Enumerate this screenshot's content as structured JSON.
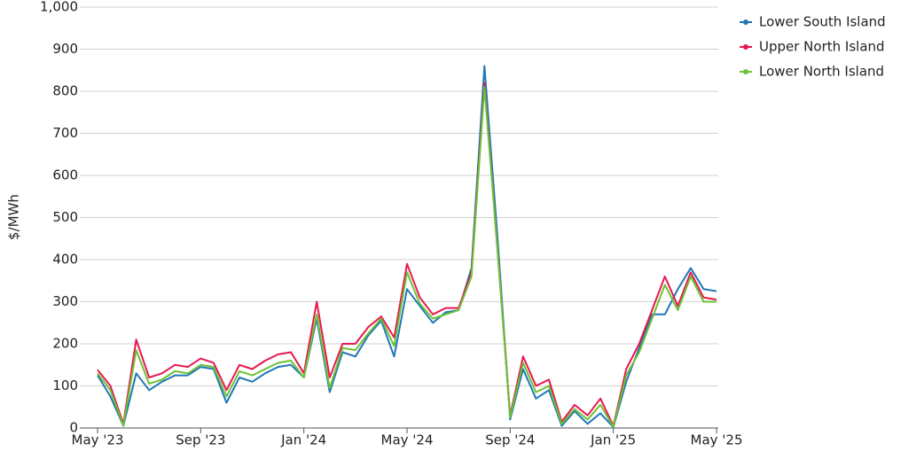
{
  "chart_data": {
    "type": "line",
    "y_label": "$/MWh",
    "categories": [
      "May '23",
      null,
      null,
      null,
      null,
      null,
      null,
      null,
      "Sep '23",
      null,
      null,
      null,
      null,
      null,
      null,
      null,
      "Jan '24",
      null,
      null,
      null,
      null,
      null,
      null,
      null,
      "May '24",
      null,
      null,
      null,
      null,
      null,
      null,
      null,
      "Sep '24",
      null,
      null,
      null,
      null,
      null,
      null,
      null,
      "Jan '25",
      null,
      null,
      null,
      null,
      null,
      null,
      null,
      "May '25"
    ],
    "series": [
      {
        "name": "Lower South Island",
        "color": "#1f78b4",
        "values": [
          125,
          75,
          5,
          130,
          90,
          110,
          125,
          125,
          145,
          140,
          60,
          120,
          110,
          130,
          145,
          150,
          120,
          260,
          85,
          180,
          170,
          220,
          255,
          170,
          330,
          290,
          250,
          275,
          280,
          380,
          860,
          460,
          20,
          140,
          70,
          90,
          5,
          40,
          10,
          35,
          2,
          110,
          190,
          270,
          270,
          330,
          380,
          330,
          325
        ]
      },
      {
        "name": "Upper North Island",
        "color": "#e8174f",
        "values": [
          138,
          100,
          10,
          210,
          120,
          130,
          150,
          145,
          165,
          155,
          90,
          150,
          140,
          160,
          175,
          180,
          130,
          300,
          120,
          200,
          200,
          240,
          265,
          215,
          390,
          310,
          270,
          285,
          285,
          370,
          820,
          430,
          30,
          170,
          100,
          115,
          15,
          55,
          30,
          70,
          5,
          140,
          200,
          280,
          360,
          290,
          370,
          310,
          305
        ]
      },
      {
        "name": "Lower North Island",
        "color": "#6cc235",
        "values": [
          130,
          90,
          5,
          185,
          105,
          115,
          135,
          130,
          150,
          145,
          75,
          135,
          125,
          140,
          155,
          160,
          120,
          270,
          95,
          190,
          185,
          225,
          260,
          195,
          370,
          295,
          260,
          270,
          280,
          360,
          810,
          430,
          25,
          155,
          85,
          100,
          10,
          45,
          20,
          55,
          3,
          125,
          180,
          260,
          340,
          280,
          360,
          300,
          300
        ]
      }
    ],
    "ylim": [
      0,
      1000
    ],
    "yticks": [
      0,
      100,
      200,
      300,
      400,
      500,
      600,
      700,
      800,
      900,
      {
        "value": 1000,
        "label": "1,000"
      }
    ],
    "grid": true,
    "legend": "upper-right"
  }
}
